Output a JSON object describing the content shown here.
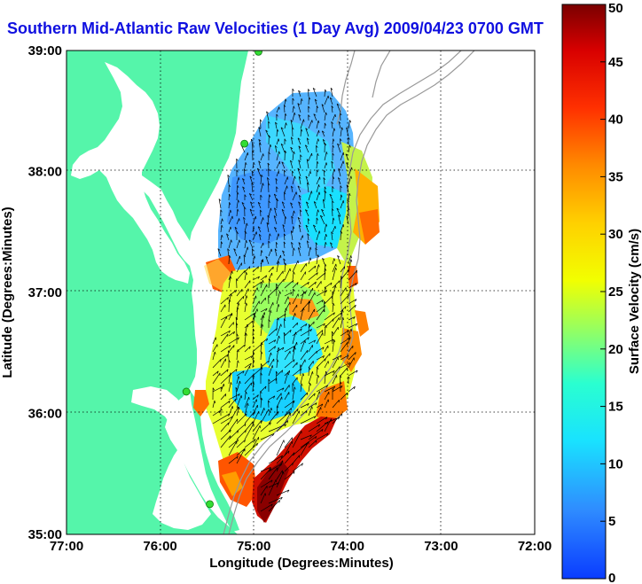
{
  "title": "Southern Mid-Atlantic Raw Velocities (1 Day Avg) 2009/04/23 0700 GMT",
  "xlabel": "Longitude (Degrees:Minutes)",
  "ylabel": "Latitude (Degrees:Minutes)",
  "x_ticks": [
    "77:00",
    "76:00",
    "75:00",
    "74:00",
    "73:00",
    "72:00"
  ],
  "y_ticks": [
    "39:00",
    "38:00",
    "37:00",
    "36:00",
    "35:00"
  ],
  "colorbar": {
    "label": "Surface Velocity (cm/s)",
    "ticks": [
      "0",
      "5",
      "10",
      "15",
      "20",
      "25",
      "30",
      "35",
      "40",
      "45",
      "50"
    ],
    "range": [
      0,
      50
    ]
  },
  "colors": {
    "land": "#55f5aa",
    "ocean": "#ffffff",
    "title": "#1010e0",
    "station": "#33dd33",
    "vector": "#000000",
    "bathymetry": "#999999"
  },
  "extent": {
    "lon": [
      -77,
      -72
    ],
    "lat": [
      35,
      39
    ]
  },
  "stations": [
    {
      "lon": -74.95,
      "lat": 38.99
    },
    {
      "lon": -75.1,
      "lat": 38.23
    },
    {
      "lon": -75.72,
      "lat": 36.18
    },
    {
      "lon": -75.47,
      "lat": 35.25
    }
  ]
}
